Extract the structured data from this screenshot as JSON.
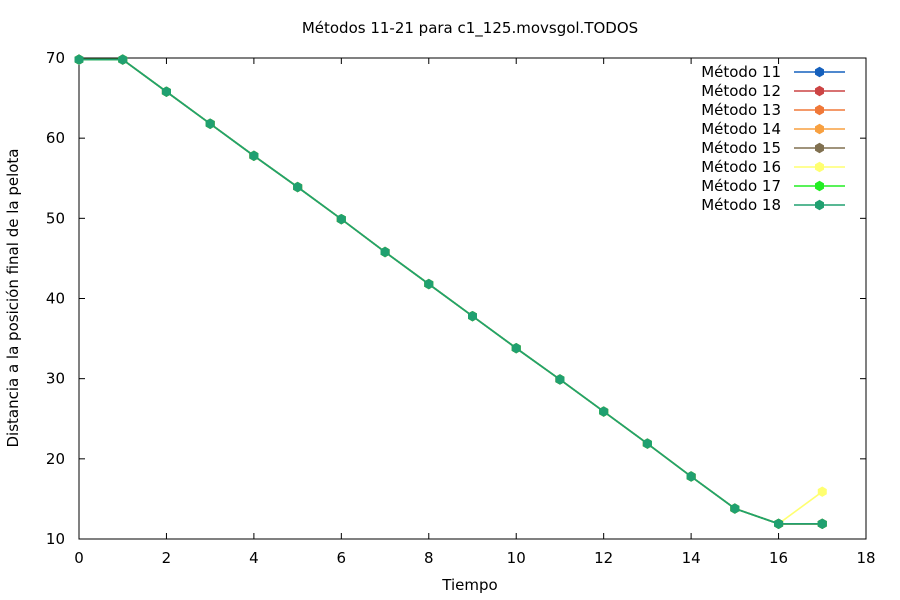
{
  "chart_data": {
    "type": "line",
    "title": "Métodos 11-21 para c1_125.movsgol.TODOS",
    "xlabel": "Tiempo",
    "ylabel": "Distancia a la posición final de la pelota",
    "xlim": [
      0,
      18
    ],
    "ylim": [
      10,
      70
    ],
    "xticks": [
      "0",
      "2",
      "4",
      "6",
      "8",
      "10",
      "12",
      "14",
      "16",
      "18"
    ],
    "yticks": [
      "10",
      "20",
      "30",
      "40",
      "50",
      "60",
      "70"
    ],
    "grid": false,
    "legend_position": "top-right",
    "x": [
      0,
      1,
      2,
      3,
      4,
      5,
      6,
      7,
      8,
      9,
      10,
      11,
      12,
      13,
      14,
      15,
      16,
      17
    ],
    "series": [
      {
        "name": "Método 11",
        "color": "#1560bd",
        "values": [
          69.8,
          69.8,
          65.8,
          61.8,
          57.8,
          53.9,
          49.9,
          45.8,
          41.8,
          37.8,
          33.8,
          29.9,
          25.9,
          21.9,
          17.8,
          13.8,
          11.9,
          11.9
        ]
      },
      {
        "name": "Método 12",
        "color": "#cc4444",
        "values": [
          69.8,
          69.8,
          65.8,
          61.8,
          57.8,
          53.9,
          49.9,
          45.8,
          41.8,
          37.8,
          33.8,
          29.9,
          25.9,
          21.9,
          17.8,
          13.8,
          11.9,
          11.9
        ]
      },
      {
        "name": "Método 13",
        "color": "#f07838",
        "values": [
          69.8,
          69.8,
          65.8,
          61.8,
          57.8,
          53.9,
          49.9,
          45.8,
          41.8,
          37.8,
          33.8,
          29.9,
          25.9,
          21.9,
          17.8,
          13.8,
          11.9,
          11.9
        ]
      },
      {
        "name": "Método 14",
        "color": "#f8a040",
        "values": [
          69.8,
          69.8,
          65.8,
          61.8,
          57.8,
          53.9,
          49.9,
          45.8,
          41.8,
          37.8,
          33.8,
          29.9,
          25.9,
          21.9,
          17.8,
          13.8,
          11.9,
          11.9
        ]
      },
      {
        "name": "Método 15",
        "color": "#807050",
        "values": [
          69.8,
          69.8,
          65.8,
          61.8,
          57.8,
          53.9,
          49.9,
          45.8,
          41.8,
          37.8,
          33.8,
          29.9,
          25.9,
          21.9,
          17.8,
          13.8,
          11.9,
          11.9
        ]
      },
      {
        "name": "Método 16",
        "color": "#ffff70",
        "values": [
          69.8,
          69.8,
          65.8,
          61.8,
          57.8,
          53.9,
          49.9,
          45.8,
          41.8,
          37.8,
          33.8,
          29.9,
          25.9,
          21.9,
          17.8,
          13.8,
          11.9,
          15.9
        ]
      },
      {
        "name": "Método 17",
        "color": "#22ee22",
        "values": [
          69.8,
          69.8,
          65.8,
          61.8,
          57.8,
          53.9,
          49.9,
          45.8,
          41.8,
          37.8,
          33.8,
          29.9,
          25.9,
          21.9,
          17.8,
          13.8,
          11.9,
          11.9
        ]
      },
      {
        "name": "Método 18",
        "color": "#20a070",
        "values": [
          69.8,
          69.8,
          65.8,
          61.8,
          57.8,
          53.9,
          49.9,
          45.8,
          41.8,
          37.8,
          33.8,
          29.9,
          25.9,
          21.9,
          17.8,
          13.8,
          11.9,
          11.9
        ]
      }
    ]
  }
}
